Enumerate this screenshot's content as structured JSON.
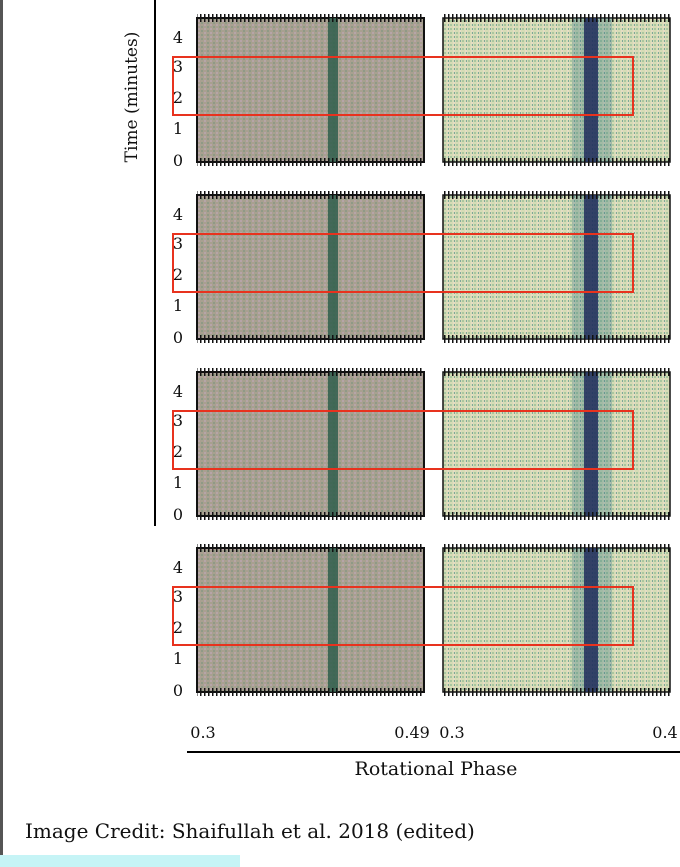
{
  "figure": {
    "y_axis": {
      "label": "Time (minutes)",
      "ticks": [
        "4",
        "3",
        "2",
        "1",
        "0"
      ]
    },
    "x_axis": {
      "ticks": [
        "0.3",
        "0.49",
        "0.3",
        "0.4"
      ],
      "label": "Rotational Phase"
    },
    "credit": "Image Credit: Shaifullah et al. 2018 (edited)"
  }
}
